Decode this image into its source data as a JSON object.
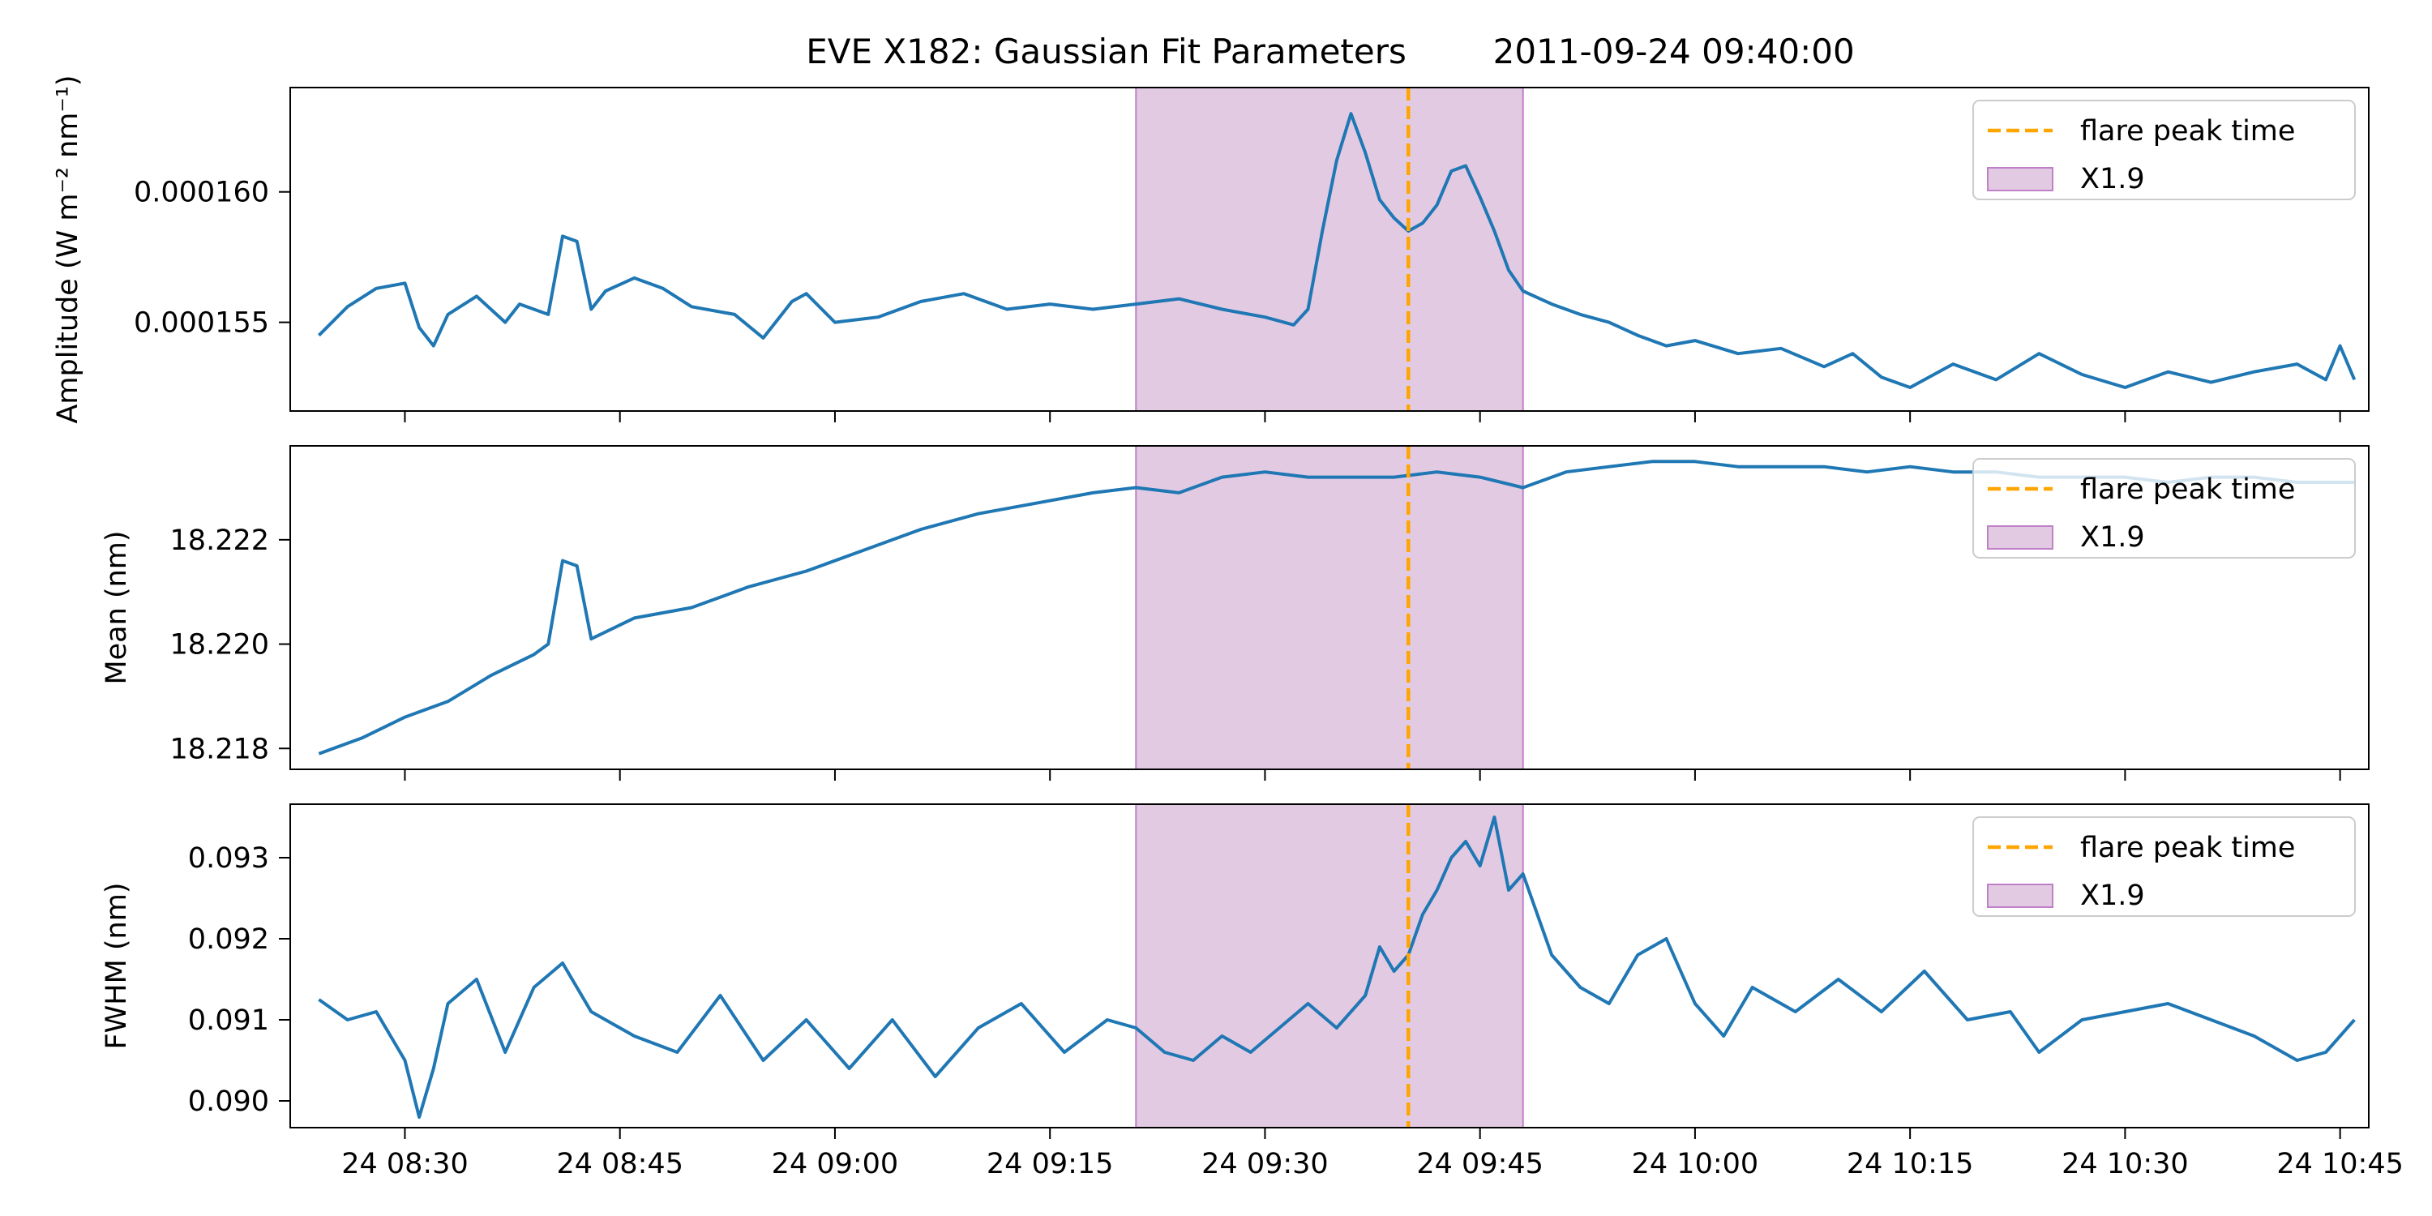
{
  "figure": {
    "title": "EVE X182: Gaussian Fit Parameters        2011-09-24 09:40:00"
  },
  "colors": {
    "series": "#1f77b4",
    "peak_line": "#ffa500",
    "flare_fill": "#c896c8",
    "flare_edge": "#c080c8"
  },
  "legend": {
    "peak_label": "flare peak time",
    "flare_label": "X1.9",
    "placement": "upper right"
  },
  "chart_data": [
    {
      "type": "line",
      "panel": "amplitude",
      "ylabel": "Amplitude (W m⁻² nm⁻¹)",
      "x_range": [
        "2011-09-24 08:22",
        "2011-09-24 10:47"
      ],
      "ylim": [
        0.0001516,
        0.000164
      ],
      "yticks": [
        0.000155,
        0.00016
      ],
      "ytick_labels": [
        "0.000155",
        "0.000160"
      ],
      "xticks": [
        "2011-09-24 08:30",
        "2011-09-24 08:45",
        "2011-09-24 09:00",
        "2011-09-24 09:15",
        "2011-09-24 09:30",
        "2011-09-24 09:45",
        "2011-09-24 10:00",
        "2011-09-24 10:15",
        "2011-09-24 10:30",
        "2011-09-24 10:45"
      ],
      "xtick_labels": [
        "",
        "",
        "",
        "",
        "",
        "",
        "",
        "",
        "",
        ""
      ],
      "flare_interval": [
        "2011-09-24 09:21",
        "2011-09-24 09:48"
      ],
      "peak_time": "2011-09-24 09:40",
      "series": [
        {
          "x": [
            "2011-09-24 08:24",
            "2011-09-24 08:26",
            "2011-09-24 08:28",
            "2011-09-24 08:30",
            "2011-09-24 08:31",
            "2011-09-24 08:32",
            "2011-09-24 08:33",
            "2011-09-24 08:35",
            "2011-09-24 08:37",
            "2011-09-24 08:38",
            "2011-09-24 08:40",
            "2011-09-24 08:41",
            "2011-09-24 08:42",
            "2011-09-24 08:43",
            "2011-09-24 08:44",
            "2011-09-24 08:46",
            "2011-09-24 08:48",
            "2011-09-24 08:50",
            "2011-09-24 08:53",
            "2011-09-24 08:55",
            "2011-09-24 08:57",
            "2011-09-24 08:58",
            "2011-09-24 09:00",
            "2011-09-24 09:03",
            "2011-09-24 09:06",
            "2011-09-24 09:09",
            "2011-09-24 09:12",
            "2011-09-24 09:15",
            "2011-09-24 09:18",
            "2011-09-24 09:21",
            "2011-09-24 09:24",
            "2011-09-24 09:27",
            "2011-09-24 09:30",
            "2011-09-24 09:32",
            "2011-09-24 09:33",
            "2011-09-24 09:34",
            "2011-09-24 09:35",
            "2011-09-24 09:36",
            "2011-09-24 09:37",
            "2011-09-24 09:38",
            "2011-09-24 09:39",
            "2011-09-24 09:40",
            "2011-09-24 09:41",
            "2011-09-24 09:42",
            "2011-09-24 09:43",
            "2011-09-24 09:44",
            "2011-09-24 09:45",
            "2011-09-24 09:46",
            "2011-09-24 09:47",
            "2011-09-24 09:48",
            "2011-09-24 09:50",
            "2011-09-24 09:52",
            "2011-09-24 09:54",
            "2011-09-24 09:56",
            "2011-09-24 09:58",
            "2011-09-24 10:00",
            "2011-09-24 10:03",
            "2011-09-24 10:06",
            "2011-09-24 10:09",
            "2011-09-24 10:11",
            "2011-09-24 10:13",
            "2011-09-24 10:15",
            "2011-09-24 10:18",
            "2011-09-24 10:21",
            "2011-09-24 10:24",
            "2011-09-24 10:27",
            "2011-09-24 10:30",
            "2011-09-24 10:33",
            "2011-09-24 10:36",
            "2011-09-24 10:39",
            "2011-09-24 10:42",
            "2011-09-24 10:44",
            "2011-09-24 10:45",
            "2011-09-24 10:46"
          ],
          "y": [
            0.0001545,
            0.0001556,
            0.0001563,
            0.0001565,
            0.0001548,
            0.0001541,
            0.0001553,
            0.000156,
            0.000155,
            0.0001557,
            0.0001553,
            0.0001583,
            0.0001581,
            0.0001555,
            0.0001562,
            0.0001567,
            0.0001563,
            0.0001556,
            0.0001553,
            0.0001544,
            0.0001558,
            0.0001561,
            0.000155,
            0.0001552,
            0.0001558,
            0.0001561,
            0.0001555,
            0.0001557,
            0.0001555,
            0.0001557,
            0.0001559,
            0.0001555,
            0.0001552,
            0.0001549,
            0.0001555,
            0.0001585,
            0.0001612,
            0.000163,
            0.0001615,
            0.0001597,
            0.000159,
            0.0001585,
            0.0001588,
            0.0001595,
            0.0001608,
            0.000161,
            0.0001598,
            0.0001585,
            0.000157,
            0.0001562,
            0.0001557,
            0.0001553,
            0.000155,
            0.0001545,
            0.0001541,
            0.0001543,
            0.0001538,
            0.000154,
            0.0001533,
            0.0001538,
            0.0001529,
            0.0001525,
            0.0001534,
            0.0001528,
            0.0001538,
            0.000153,
            0.0001525,
            0.0001531,
            0.0001527,
            0.0001531,
            0.0001534,
            0.0001528,
            0.0001541,
            0.0001528
          ]
        }
      ]
    },
    {
      "type": "line",
      "panel": "mean",
      "ylabel": "Mean (nm)",
      "x_range": [
        "2011-09-24 08:22",
        "2011-09-24 10:47"
      ],
      "ylim": [
        18.2176,
        18.2238
      ],
      "yticks": [
        18.218,
        18.22,
        18.222
      ],
      "ytick_labels": [
        "18.218",
        "18.220",
        "18.222"
      ],
      "xticks": [
        "2011-09-24 08:30",
        "2011-09-24 08:45",
        "2011-09-24 09:00",
        "2011-09-24 09:15",
        "2011-09-24 09:30",
        "2011-09-24 09:45",
        "2011-09-24 10:00",
        "2011-09-24 10:15",
        "2011-09-24 10:30",
        "2011-09-24 10:45"
      ],
      "xtick_labels": [
        "",
        "",
        "",
        "",
        "",
        "",
        "",
        "",
        "",
        ""
      ],
      "flare_interval": [
        "2011-09-24 09:21",
        "2011-09-24 09:48"
      ],
      "peak_time": "2011-09-24 09:40",
      "series": [
        {
          "x": [
            "2011-09-24 08:24",
            "2011-09-24 08:27",
            "2011-09-24 08:30",
            "2011-09-24 08:33",
            "2011-09-24 08:36",
            "2011-09-24 08:39",
            "2011-09-24 08:40",
            "2011-09-24 08:41",
            "2011-09-24 08:42",
            "2011-09-24 08:43",
            "2011-09-24 08:46",
            "2011-09-24 08:50",
            "2011-09-24 08:54",
            "2011-09-24 08:58",
            "2011-09-24 09:02",
            "2011-09-24 09:06",
            "2011-09-24 09:10",
            "2011-09-24 09:14",
            "2011-09-24 09:18",
            "2011-09-24 09:21",
            "2011-09-24 09:24",
            "2011-09-24 09:27",
            "2011-09-24 09:30",
            "2011-09-24 09:33",
            "2011-09-24 09:36",
            "2011-09-24 09:39",
            "2011-09-24 09:42",
            "2011-09-24 09:45",
            "2011-09-24 09:48",
            "2011-09-24 09:51",
            "2011-09-24 09:54",
            "2011-09-24 09:57",
            "2011-09-24 10:00",
            "2011-09-24 10:03",
            "2011-09-24 10:06",
            "2011-09-24 10:09",
            "2011-09-24 10:12",
            "2011-09-24 10:15",
            "2011-09-24 10:18",
            "2011-09-24 10:21",
            "2011-09-24 10:24",
            "2011-09-24 10:27",
            "2011-09-24 10:30",
            "2011-09-24 10:33",
            "2011-09-24 10:36",
            "2011-09-24 10:39",
            "2011-09-24 10:42",
            "2011-09-24 10:46"
          ],
          "y": [
            18.2179,
            18.2182,
            18.2186,
            18.2189,
            18.2194,
            18.2198,
            18.22,
            18.2216,
            18.2215,
            18.2201,
            18.2205,
            18.2207,
            18.2211,
            18.2214,
            18.2218,
            18.2222,
            18.2225,
            18.2227,
            18.2229,
            18.223,
            18.2229,
            18.2232,
            18.2233,
            18.2232,
            18.2232,
            18.2232,
            18.2233,
            18.2232,
            18.223,
            18.2233,
            18.2234,
            18.2235,
            18.2235,
            18.2234,
            18.2234,
            18.2234,
            18.2233,
            18.2234,
            18.2233,
            18.2233,
            18.2232,
            18.2232,
            18.2232,
            18.2231,
            18.2232,
            18.2232,
            18.2231,
            18.2231
          ]
        }
      ]
    },
    {
      "type": "line",
      "panel": "fwhm",
      "ylabel": "FWHM (nm)",
      "x_range": [
        "2011-09-24 08:22",
        "2011-09-24 10:47"
      ],
      "ylim": [
        0.08967,
        0.09366
      ],
      "yticks": [
        0.09,
        0.091,
        0.092,
        0.093
      ],
      "ytick_labels": [
        "0.090",
        "0.091",
        "0.092",
        "0.093"
      ],
      "xticks": [
        "2011-09-24 08:30",
        "2011-09-24 08:45",
        "2011-09-24 09:00",
        "2011-09-24 09:15",
        "2011-09-24 09:30",
        "2011-09-24 09:45",
        "2011-09-24 10:00",
        "2011-09-24 10:15",
        "2011-09-24 10:30",
        "2011-09-24 10:45"
      ],
      "xtick_labels": [
        "24 08:30",
        "24 08:45",
        "24 09:00",
        "24 09:15",
        "24 09:30",
        "24 09:45",
        "24 10:00",
        "24 10:15",
        "24 10:30",
        "24 10:45"
      ],
      "flare_interval": [
        "2011-09-24 09:21",
        "2011-09-24 09:48"
      ],
      "peak_time": "2011-09-24 09:40",
      "series": [
        {
          "x": [
            "2011-09-24 08:24",
            "2011-09-24 08:26",
            "2011-09-24 08:28",
            "2011-09-24 08:30",
            "2011-09-24 08:31",
            "2011-09-24 08:32",
            "2011-09-24 08:33",
            "2011-09-24 08:35",
            "2011-09-24 08:37",
            "2011-09-24 08:39",
            "2011-09-24 08:41",
            "2011-09-24 08:43",
            "2011-09-24 08:46",
            "2011-09-24 08:49",
            "2011-09-24 08:52",
            "2011-09-24 08:55",
            "2011-09-24 08:58",
            "2011-09-24 09:01",
            "2011-09-24 09:04",
            "2011-09-24 09:07",
            "2011-09-24 09:10",
            "2011-09-24 09:13",
            "2011-09-24 09:16",
            "2011-09-24 09:19",
            "2011-09-24 09:21",
            "2011-09-24 09:23",
            "2011-09-24 09:25",
            "2011-09-24 09:27",
            "2011-09-24 09:29",
            "2011-09-24 09:31",
            "2011-09-24 09:33",
            "2011-09-24 09:35",
            "2011-09-24 09:37",
            "2011-09-24 09:38",
            "2011-09-24 09:39",
            "2011-09-24 09:40",
            "2011-09-24 09:41",
            "2011-09-24 09:42",
            "2011-09-24 09:43",
            "2011-09-24 09:44",
            "2011-09-24 09:45",
            "2011-09-24 09:46",
            "2011-09-24 09:47",
            "2011-09-24 09:48",
            "2011-09-24 09:50",
            "2011-09-24 09:52",
            "2011-09-24 09:54",
            "2011-09-24 09:56",
            "2011-09-24 09:58",
            "2011-09-24 10:00",
            "2011-09-24 10:02",
            "2011-09-24 10:04",
            "2011-09-24 10:07",
            "2011-09-24 10:10",
            "2011-09-24 10:13",
            "2011-09-24 10:16",
            "2011-09-24 10:19",
            "2011-09-24 10:22",
            "2011-09-24 10:24",
            "2011-09-24 10:27",
            "2011-09-24 10:30",
            "2011-09-24 10:33",
            "2011-09-24 10:36",
            "2011-09-24 10:39",
            "2011-09-24 10:42",
            "2011-09-24 10:44",
            "2011-09-24 10:46"
          ],
          "y": [
            0.09125,
            0.091,
            0.0911,
            0.0905,
            0.0898,
            0.0904,
            0.0912,
            0.0915,
            0.0906,
            0.0914,
            0.0917,
            0.0911,
            0.0908,
            0.0906,
            0.0913,
            0.0905,
            0.091,
            0.0904,
            0.091,
            0.0903,
            0.0909,
            0.0912,
            0.0906,
            0.091,
            0.0909,
            0.0906,
            0.0905,
            0.0908,
            0.0906,
            0.0909,
            0.0912,
            0.0909,
            0.0913,
            0.0919,
            0.0916,
            0.0918,
            0.0923,
            0.0926,
            0.093,
            0.0932,
            0.0929,
            0.0935,
            0.0926,
            0.0928,
            0.0918,
            0.0914,
            0.0912,
            0.0918,
            0.092,
            0.0912,
            0.0908,
            0.0914,
            0.0911,
            0.0915,
            0.0911,
            0.0916,
            0.091,
            0.0911,
            0.0906,
            0.091,
            0.0911,
            0.0912,
            0.091,
            0.0908,
            0.0905,
            0.0906,
            0.091
          ]
        }
      ]
    }
  ]
}
